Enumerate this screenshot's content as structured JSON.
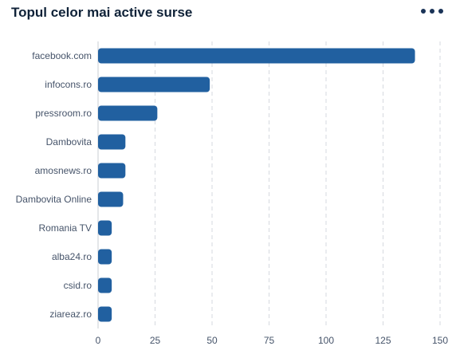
{
  "header": {
    "title": "Topul celor mai active surse",
    "menu_icon": "more-horizontal-icon"
  },
  "colors": {
    "bar": "#2160a0",
    "grid": "#d6d9df",
    "axis": "#c8ccd3",
    "title": "#0f2238"
  },
  "chart_data": {
    "type": "bar",
    "orientation": "horizontal",
    "title": "Topul celor mai active surse",
    "categories": [
      "facebook.com",
      "infocons.ro",
      "pressroom.ro",
      "Dambovita",
      "amosnews.ro",
      "Dambovita Online",
      "Romania TV",
      "alba24.ro",
      "csid.ro",
      "ziareaz.ro"
    ],
    "values": [
      139,
      49,
      26,
      12,
      12,
      11,
      6,
      6,
      6,
      6
    ],
    "xlim": [
      0,
      150
    ],
    "xticks": [
      0,
      25,
      50,
      75,
      100,
      125,
      150
    ],
    "xlabel": "",
    "ylabel": "",
    "grid": "vertical dashed",
    "legend": "none"
  }
}
